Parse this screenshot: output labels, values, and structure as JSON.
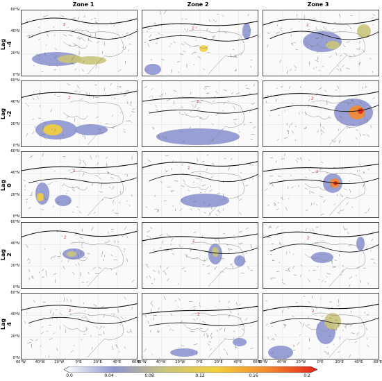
{
  "columns": [
    "Zone 1",
    "Zone 2",
    "Zone 3"
  ],
  "rows": [
    "Lag -4",
    "Lag -2",
    "Lag 0",
    "Lag 2",
    "Lag 4"
  ],
  "lat_labels": [
    "60°N",
    "40°N",
    "20°N",
    "0°N"
  ],
  "lon_labels": [
    "60°W",
    "40°W",
    "20°W",
    "0°E",
    "20°E",
    "40°E",
    "60°E"
  ],
  "contour_label": "2",
  "colorbar": {
    "ticks": [
      "0.0",
      "0.04",
      "0.08",
      "0.12",
      "0.16",
      "0.2"
    ],
    "colors": [
      "#ffffff",
      "#8d95cf",
      "#c9c47a",
      "#f2cf3a",
      "#f28a2e",
      "#e8221c"
    ]
  }
}
